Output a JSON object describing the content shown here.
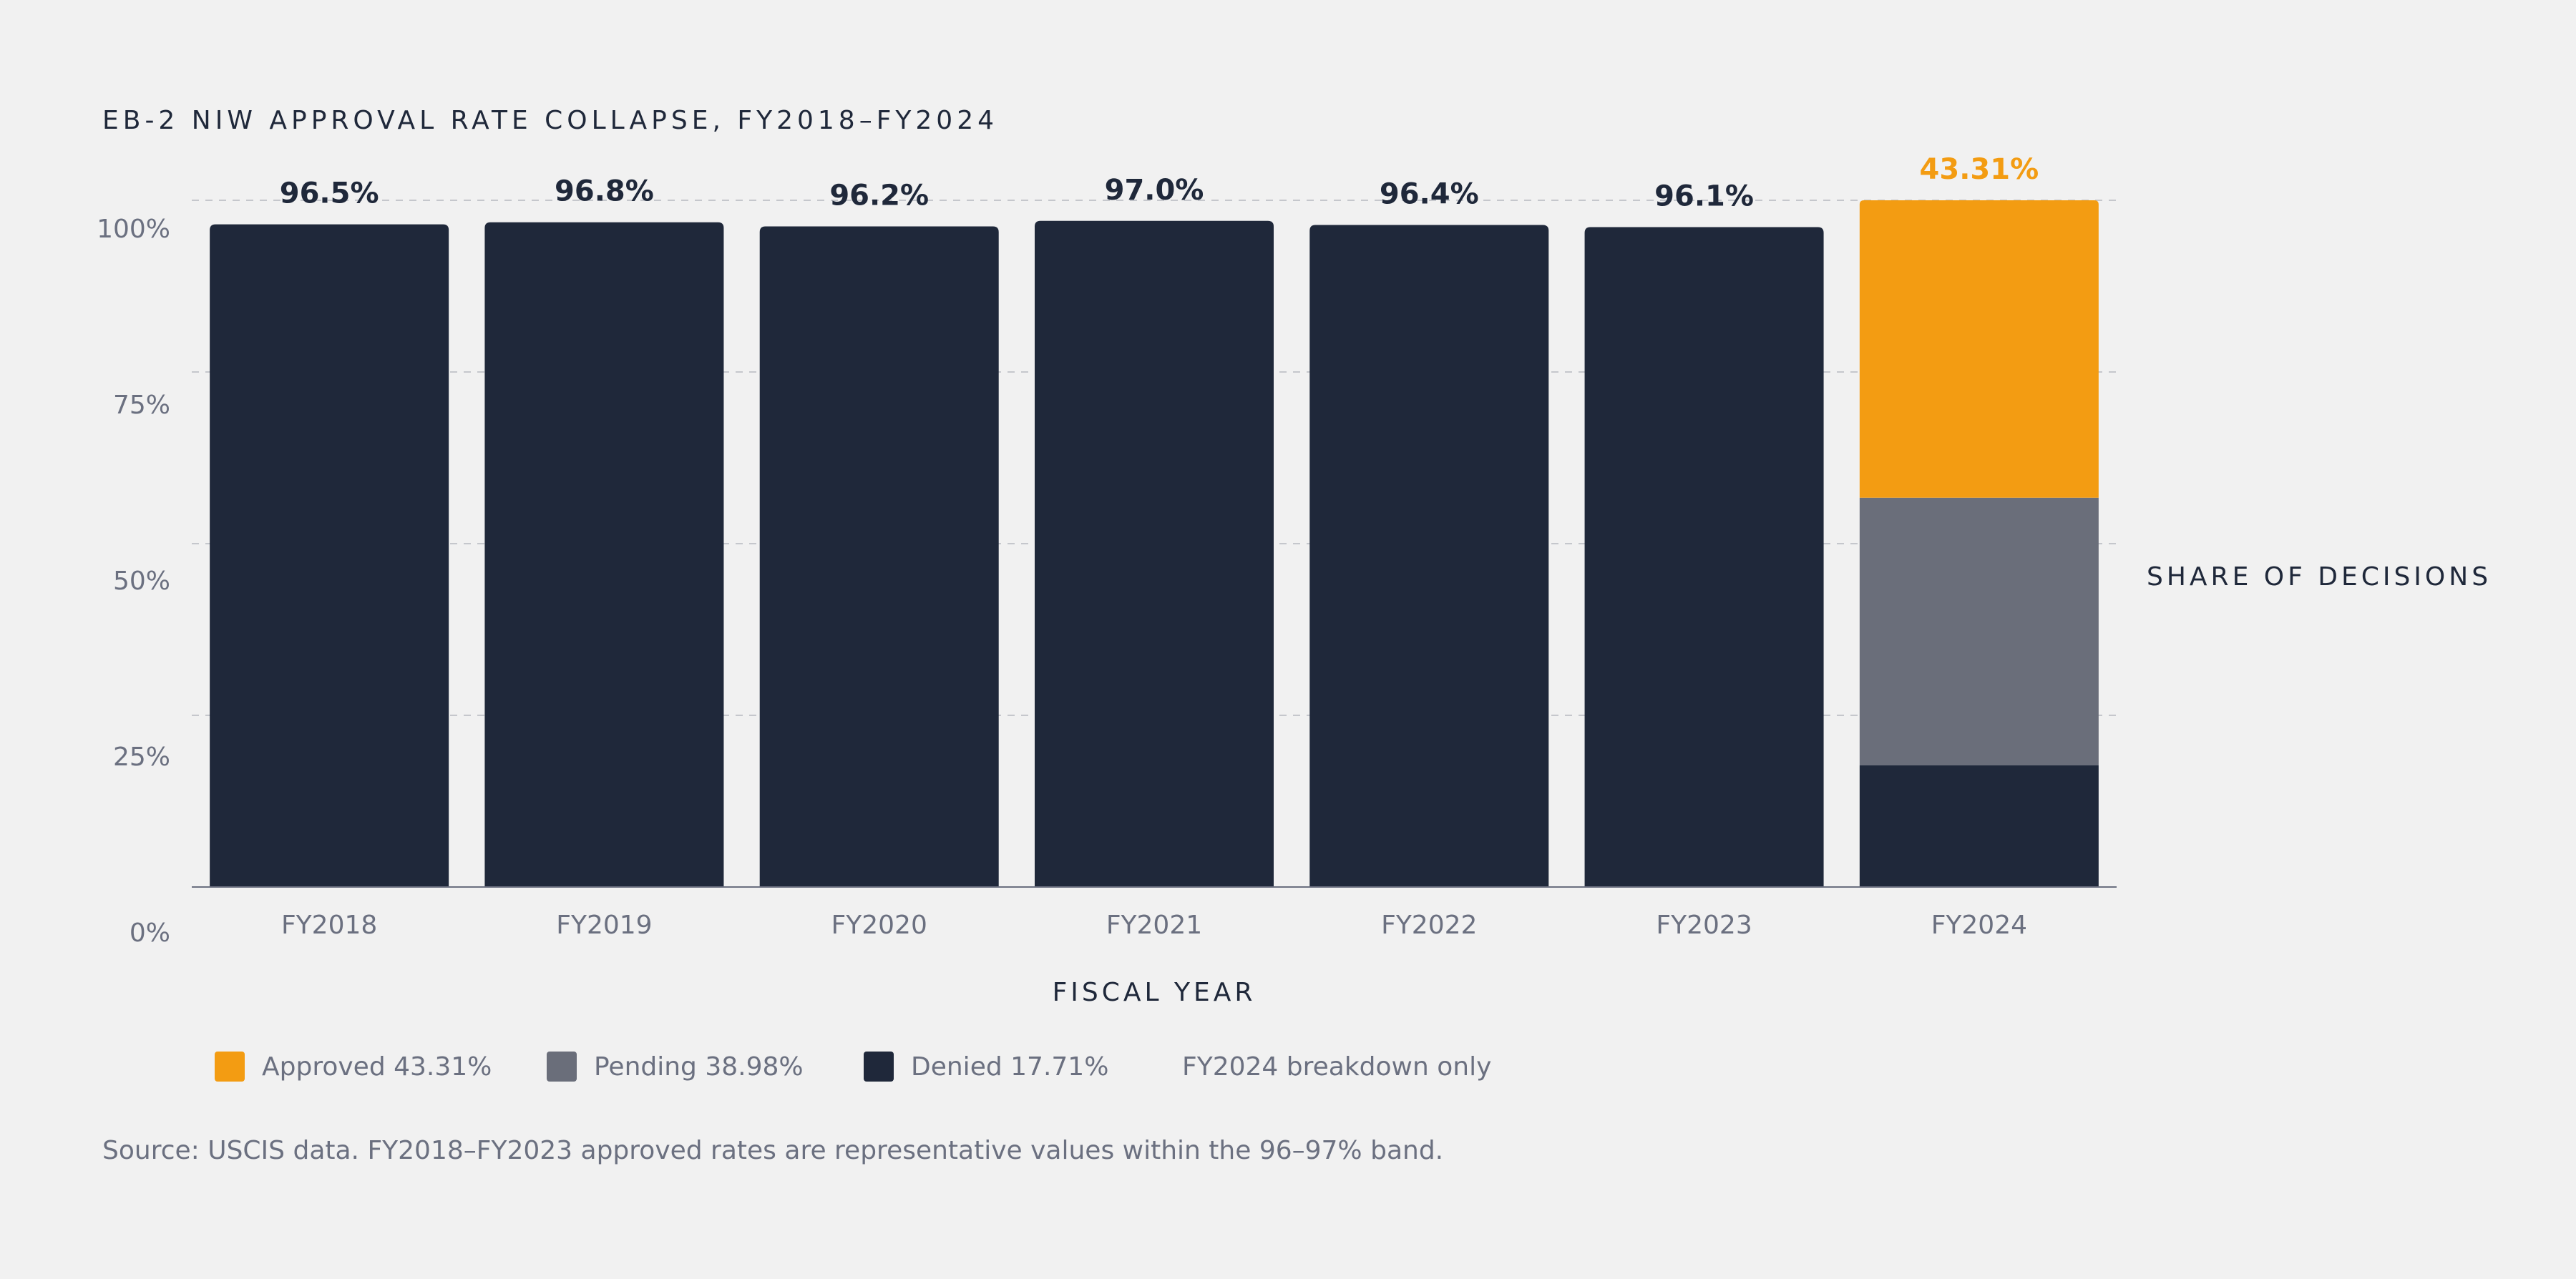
{
  "chart_data": {
    "type": "bar",
    "title": "EB-2 NIW APPROVAL RATE COLLAPSE, FY2018–FY2024",
    "xlabel": "FISCAL YEAR",
    "ylabel": "SHARE OF DECISIONS",
    "ylim": [
      0,
      100
    ],
    "yticks": [
      "0%",
      "25%",
      "50%",
      "75%",
      "100%"
    ],
    "grid": true,
    "categories": [
      "FY2018",
      "FY2019",
      "FY2020",
      "FY2021",
      "FY2022",
      "FY2023",
      "FY2024"
    ],
    "series": [
      {
        "name": "Approved",
        "values": [
          96.5,
          96.8,
          96.2,
          97.0,
          96.4,
          96.1,
          43.31
        ]
      },
      {
        "name": "Pending",
        "values": [
          null,
          null,
          null,
          null,
          null,
          null,
          38.98
        ]
      },
      {
        "name": "Denied",
        "values": [
          null,
          null,
          null,
          null,
          null,
          null,
          17.71
        ]
      }
    ],
    "data_labels": [
      "96.5%",
      "96.8%",
      "96.2%",
      "97.0%",
      "96.4%",
      "96.1%",
      "43.31%"
    ],
    "colors": {
      "historical": "#1f283a",
      "approved": "#f39c12",
      "pending": "#6a6e7a",
      "denied": "#1f283a",
      "label_dark": "#1f283a",
      "label_accent": "#f39c12",
      "tick_text": "#6b7080",
      "gridline": "#c5c7cc",
      "axis": "#6b7080"
    }
  },
  "legend": {
    "approved": "Approved 43.31%",
    "pending": "Pending 38.98%",
    "denied": "Denied 17.71%",
    "note": "FY2024 breakdown only"
  },
  "footnote": "Source: USCIS data. FY2018–FY2023 approved rates are representative values within the 96–97% band."
}
